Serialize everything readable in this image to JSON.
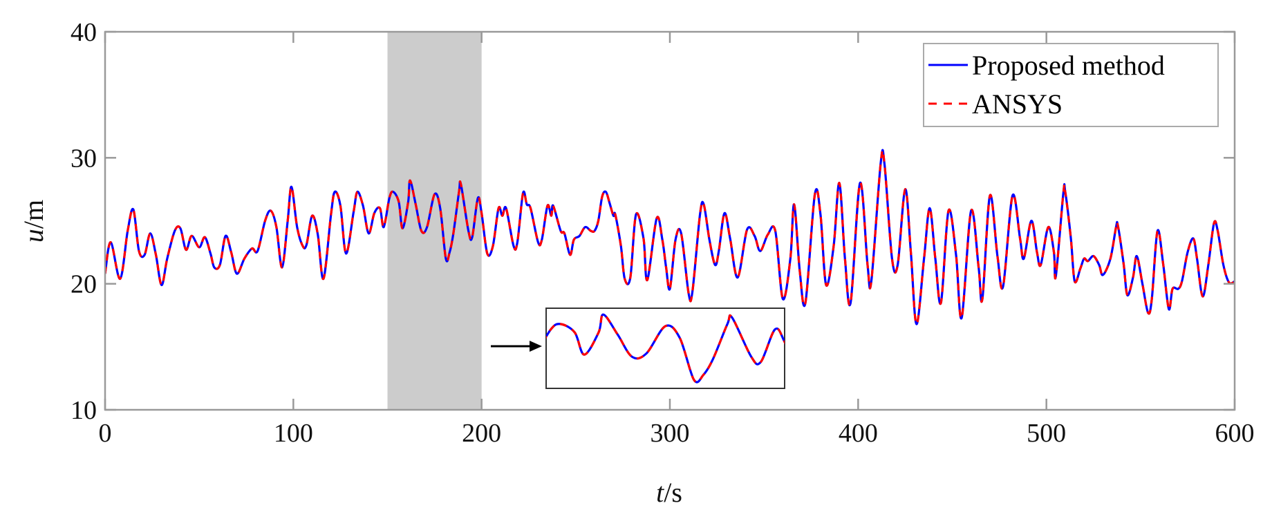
{
  "chart_data": {
    "type": "line",
    "title": "",
    "xlabel": {
      "italic": "t",
      "rest": "/s"
    },
    "ylabel": {
      "italic": "u",
      "rest": "/m"
    },
    "xlim": [
      0,
      600
    ],
    "ylim": [
      10,
      40
    ],
    "xticks": [
      "0",
      "100",
      "200",
      "300",
      "400",
      "500",
      "600"
    ],
    "yticks": [
      "10",
      "20",
      "30",
      "40"
    ],
    "grid": false,
    "legend_placement": "top-right",
    "highlight_region": [
      150,
      200
    ],
    "highlight_color": "#cccccc",
    "inset": {
      "shows_range": [
        150,
        200
      ],
      "pointer": "arrow-right"
    },
    "series": [
      {
        "name": "Proposed method",
        "color": "#0000ff",
        "style": "solid"
      },
      {
        "name": "ANSYS",
        "color": "#ff0000",
        "style": "dashed"
      }
    ],
    "t": [
      0,
      3,
      8,
      12,
      15,
      18,
      21,
      24,
      27,
      30,
      33,
      37,
      40,
      43,
      46,
      50,
      53,
      56,
      58,
      61,
      64,
      67,
      70,
      74,
      78,
      81,
      85,
      88,
      91,
      94,
      97,
      99,
      102,
      105,
      107,
      110,
      113,
      116,
      120,
      122,
      125,
      128,
      132,
      134,
      137,
      140,
      143,
      146,
      148,
      151,
      153,
      156,
      158,
      161,
      162,
      165,
      168,
      171,
      175,
      178,
      181,
      183,
      185,
      188,
      189,
      193,
      195,
      198,
      200,
      203,
      206,
      209,
      211,
      213,
      217,
      219,
      222,
      224,
      226,
      230,
      232,
      235,
      237,
      238,
      242,
      244,
      247,
      249,
      252,
      255,
      258,
      260,
      262,
      264,
      266,
      268,
      270,
      271,
      274,
      276,
      279,
      282,
      286,
      288,
      293,
      296,
      298,
      300,
      303,
      306,
      310,
      312,
      316,
      318,
      321,
      324,
      326,
      329,
      332,
      336,
      341,
      345,
      348,
      352,
      356,
      360,
      364,
      366,
      369,
      372,
      377,
      380,
      383,
      387,
      390,
      393,
      396,
      401,
      405,
      407,
      412,
      414,
      418,
      421,
      425,
      428,
      431,
      435,
      438,
      441,
      444,
      448,
      452,
      455,
      460,
      464,
      466,
      470,
      474,
      477,
      482,
      486,
      488,
      492,
      495,
      497,
      501,
      504,
      505,
      509,
      510,
      513,
      515,
      518,
      520,
      522,
      525,
      528,
      530,
      534,
      537,
      538,
      541,
      543,
      546,
      548,
      551,
      554,
      556,
      559,
      562,
      565,
      567,
      570,
      572,
      575,
      578,
      580,
      583,
      586,
      589,
      591,
      594,
      597,
      600
    ],
    "u": [
      20.8,
      23.3,
      20.4,
      24.2,
      25.9,
      22.6,
      22.3,
      24.0,
      22.3,
      19.9,
      22.0,
      24.2,
      24.4,
      22.7,
      23.8,
      22.9,
      23.7,
      22.4,
      21.3,
      21.5,
      23.8,
      22.5,
      20.8,
      22.0,
      22.8,
      22.6,
      25.0,
      25.8,
      24.5,
      21.3,
      25.0,
      27.7,
      24.5,
      23.0,
      23.1,
      25.4,
      23.9,
      20.4,
      25.5,
      27.3,
      26.2,
      22.4,
      25.7,
      27.3,
      26.2,
      24.0,
      25.6,
      26.0,
      24.5,
      26.8,
      27.3,
      26.5,
      24.4,
      26.5,
      28.2,
      26.3,
      24.2,
      24.5,
      27.1,
      26.0,
      22.0,
      22.5,
      24.0,
      27.3,
      27.9,
      24.2,
      23.7,
      26.8,
      25.6,
      22.4,
      23.0,
      26.0,
      25.4,
      26.0,
      23.0,
      23.3,
      27.2,
      26.3,
      26.0,
      23.3,
      23.5,
      26.2,
      25.4,
      26.2,
      24.2,
      24.0,
      22.3,
      23.5,
      23.8,
      24.5,
      24.2,
      24.2,
      25.0,
      26.9,
      27.3,
      26.4,
      25.4,
      25.5,
      23.0,
      20.4,
      20.5,
      25.5,
      23.6,
      20.3,
      25.2,
      23.5,
      21.3,
      19.6,
      23.5,
      24.0,
      19.2,
      19.4,
      25.5,
      26.3,
      23.5,
      21.5,
      22.6,
      25.6,
      23.6,
      20.5,
      24.3,
      23.8,
      22.6,
      23.9,
      24.2,
      18.8,
      22.0,
      26.3,
      21.0,
      18.5,
      27.1,
      25.5,
      19.9,
      23.0,
      28.0,
      22.0,
      18.5,
      28.0,
      21.5,
      20.2,
      29.6,
      29.5,
      22.0,
      21.5,
      27.5,
      22.5,
      16.8,
      22.0,
      26.0,
      22.0,
      18.5,
      25.8,
      22.3,
      17.3,
      25.8,
      21.3,
      18.8,
      27.0,
      22.2,
      19.8,
      27.0,
      23.6,
      22.0,
      25.0,
      22.5,
      21.5,
      24.5,
      22.5,
      20.6,
      27.2,
      27.3,
      23.6,
      20.2,
      21.2,
      22.0,
      21.8,
      22.2,
      21.5,
      20.7,
      22.0,
      24.5,
      24.6,
      21.6,
      19.1,
      20.5,
      22.2,
      20.0,
      17.7,
      18.8,
      24.2,
      21.6,
      18.0,
      19.6,
      19.6,
      20.2,
      22.5,
      23.6,
      22.0,
      19.0,
      21.5,
      24.8,
      24.2,
      21.5,
      20.1,
      20.2
    ]
  }
}
